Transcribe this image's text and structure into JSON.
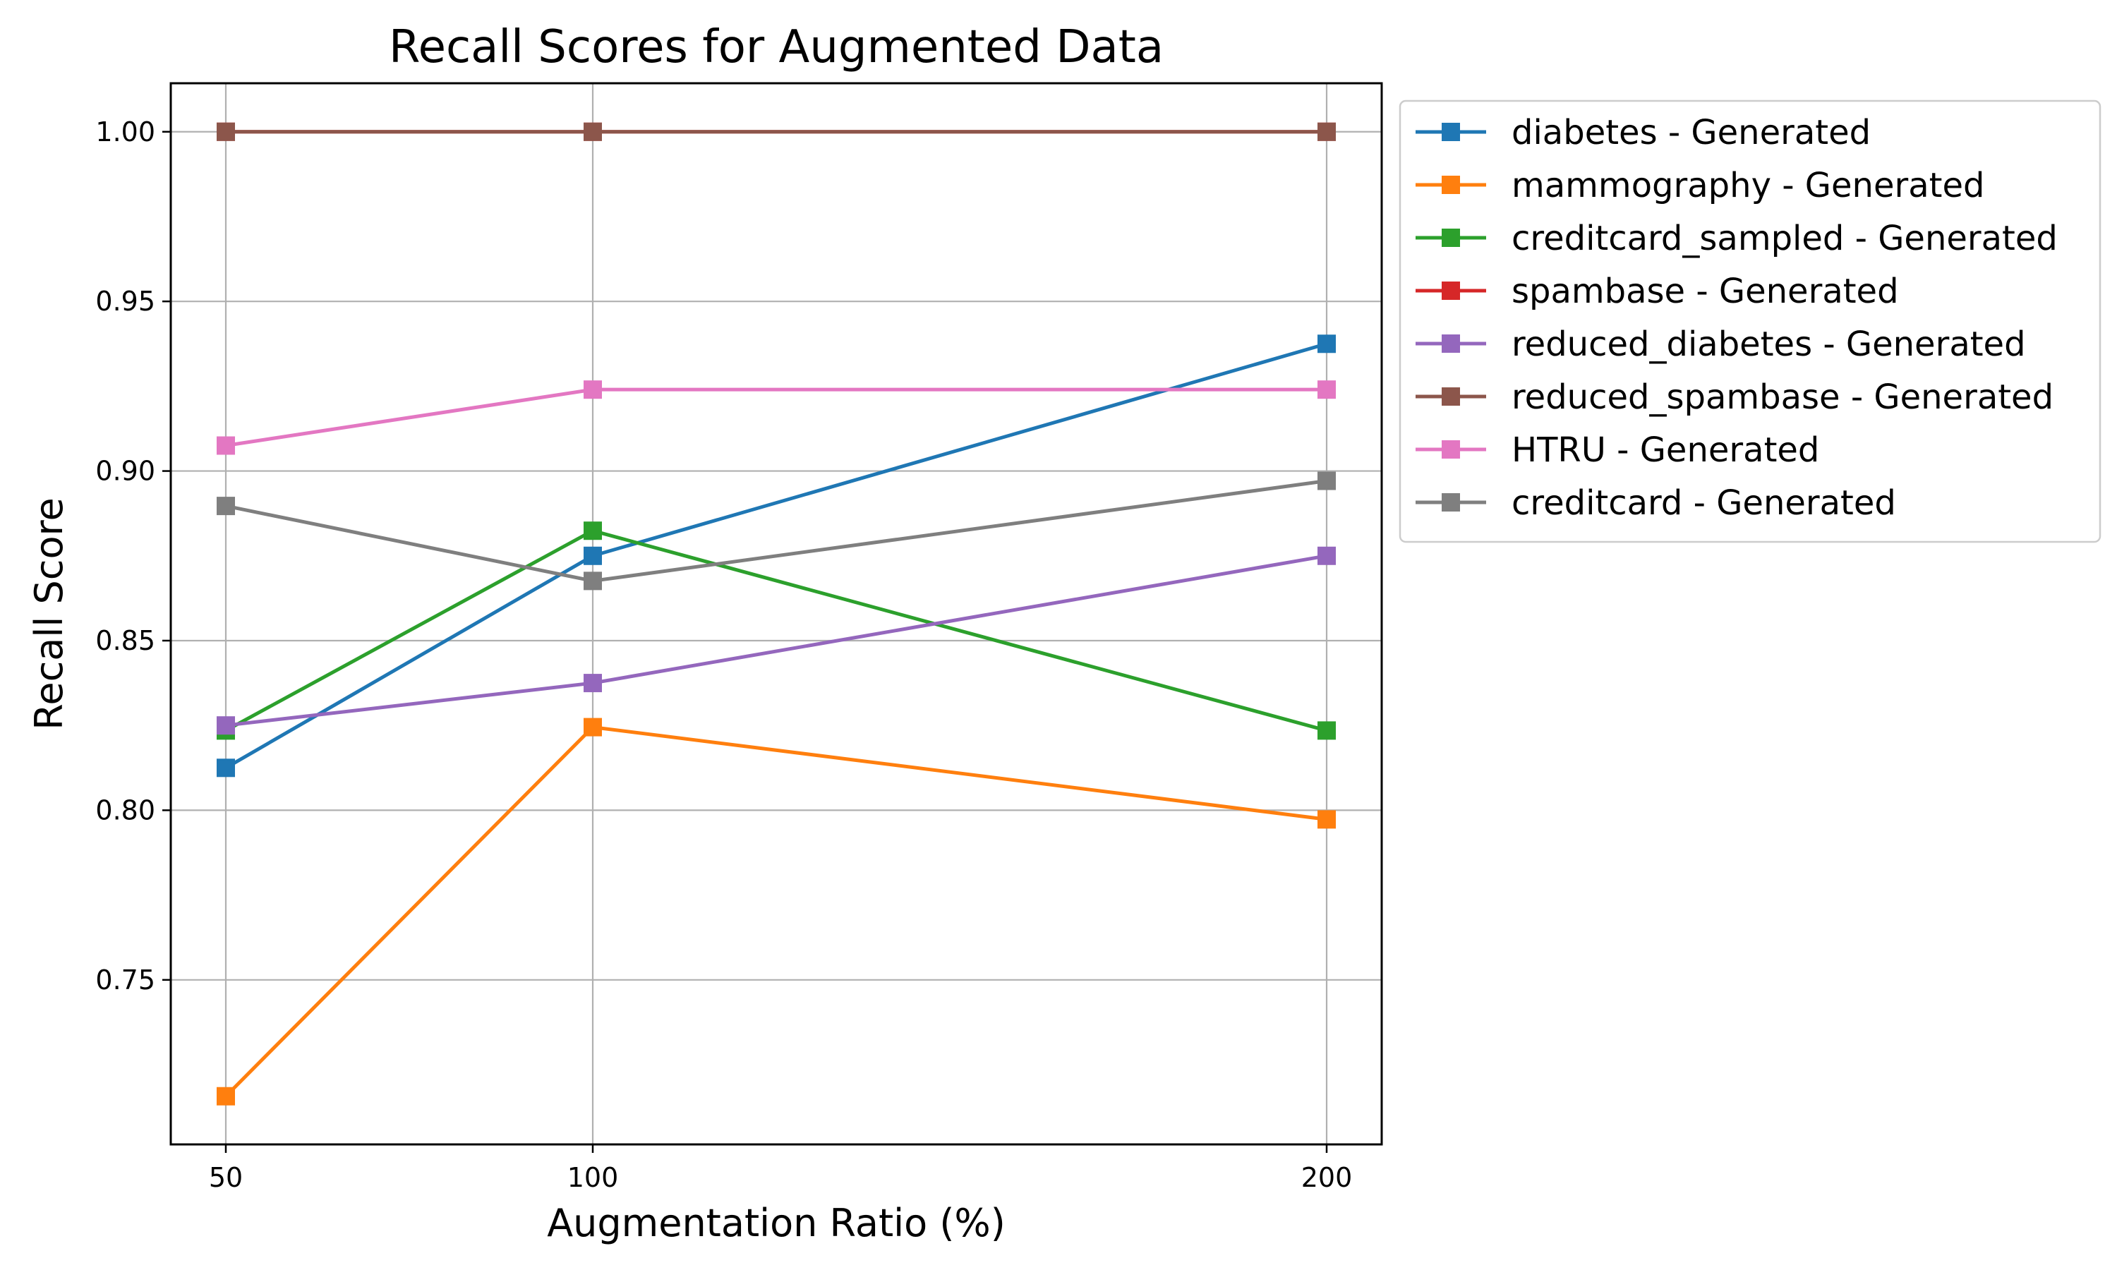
{
  "chart_data": {
    "type": "line",
    "title": "Recall Scores for Augmented Data",
    "xlabel": "Augmentation Ratio (%)",
    "ylabel": "Recall Score",
    "x": [
      50,
      100,
      200
    ],
    "x_tick_labels": [
      "50",
      "100",
      "200"
    ],
    "y_ticks": [
      0.75,
      0.8,
      0.85,
      0.9,
      0.95,
      1.0
    ],
    "y_tick_labels": [
      "0.75",
      "0.80",
      "0.85",
      "0.90",
      "0.95",
      "1.00"
    ],
    "xlim": [
      42.5,
      207.5
    ],
    "ylim": [
      0.7015,
      1.0143
    ],
    "grid": true,
    "legend_position": "outside-upper-right",
    "marker": "square",
    "series": [
      {
        "name": "diabetes - Generated",
        "color": "#1f77b4",
        "values": [
          0.8125,
          0.875,
          0.9375
        ]
      },
      {
        "name": "mammography - Generated",
        "color": "#ff7f0e",
        "values": [
          0.7157,
          0.8245,
          0.7973
        ]
      },
      {
        "name": "creditcard_sampled - Generated",
        "color": "#2ca02c",
        "values": [
          0.8235,
          0.8824,
          0.8235
        ]
      },
      {
        "name": "spambase - Generated",
        "color": "#d62728",
        "values": [
          1.0,
          1.0,
          1.0
        ]
      },
      {
        "name": "reduced_diabetes - Generated",
        "color": "#9467bd",
        "values": [
          0.825,
          0.8375,
          0.875
        ]
      },
      {
        "name": "reduced_spambase - Generated",
        "color": "#8c564b",
        "values": [
          1.0,
          1.0,
          1.0
        ]
      },
      {
        "name": "HTRU - Generated",
        "color": "#e377c2",
        "values": [
          0.9075,
          0.924,
          0.924
        ]
      },
      {
        "name": "creditcard - Generated",
        "color": "#7f7f7f",
        "values": [
          0.8897,
          0.8676,
          0.8971
        ]
      }
    ]
  }
}
